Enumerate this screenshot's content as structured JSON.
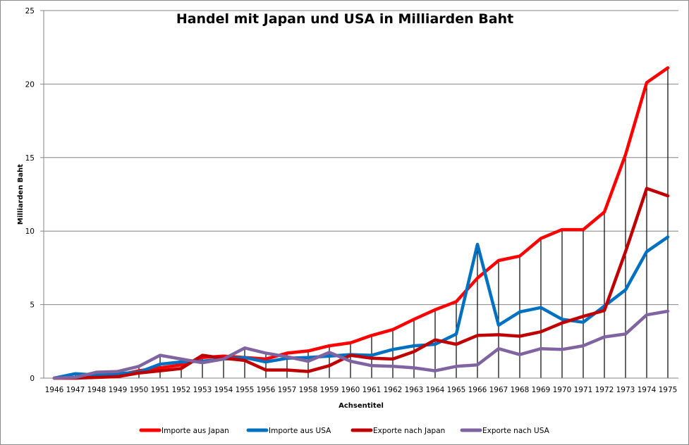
{
  "chart_data": {
    "type": "line",
    "title": "Handel mit Japan und USA in Milliarden Baht",
    "xlabel": "Achsentitel",
    "ylabel": "Milliarden Baht",
    "ylim": [
      0,
      25
    ],
    "yticks": [
      "0",
      "5",
      "10",
      "15",
      "20",
      "25"
    ],
    "ytick_values": [
      0,
      5,
      10,
      15,
      20,
      25
    ],
    "grid": "horizontal",
    "legend_position": "bottom",
    "high_low_lines": true,
    "categories": [
      "1946",
      "1947",
      "1948",
      "1949",
      "1950",
      "1951",
      "1952",
      "1953",
      "1954",
      "1955",
      "1956",
      "1957",
      "1958",
      "1959",
      "1960",
      "1961",
      "1962",
      "1963",
      "1964",
      "1965",
      "1966",
      "1967",
      "1968",
      "1969",
      "1970",
      "1971",
      "1972",
      "1973",
      "1974",
      "1975"
    ],
    "series": [
      {
        "name": "Importe aus Japan",
        "color": "#ff0000",
        "values": [
          0,
          0,
          0.1,
          0.2,
          0.5,
          0.7,
          0.9,
          1.4,
          1.5,
          1.4,
          1.3,
          1.7,
          1.85,
          2.2,
          2.4,
          2.9,
          3.3,
          4.0,
          4.65,
          5.2,
          6.8,
          8.0,
          8.3,
          9.5,
          10.1,
          10.1,
          11.3,
          15.2,
          20.1,
          21.1
        ]
      },
      {
        "name": "Importe aus USA",
        "color": "#0070c0",
        "values": [
          0,
          0.3,
          0.2,
          0.3,
          0.4,
          0.95,
          1.1,
          1.15,
          1.3,
          1.4,
          1.1,
          1.35,
          1.4,
          1.5,
          1.6,
          1.55,
          1.95,
          2.2,
          2.3,
          3.0,
          9.1,
          3.6,
          4.5,
          4.8,
          4.0,
          3.8,
          4.9,
          6.0,
          8.6,
          9.6
        ]
      },
      {
        "name": "Exporte nach Japan",
        "color": "#c00000",
        "values": [
          0,
          0,
          0.05,
          0.1,
          0.35,
          0.5,
          0.65,
          1.55,
          1.35,
          1.2,
          0.55,
          0.55,
          0.45,
          0.85,
          1.55,
          1.35,
          1.3,
          1.8,
          2.6,
          2.3,
          2.9,
          2.95,
          2.85,
          3.15,
          3.75,
          4.2,
          4.6,
          8.6,
          12.9,
          12.4
        ]
      },
      {
        "name": "Exporte nach USA",
        "color": "#8064a2",
        "values": [
          0,
          0.05,
          0.4,
          0.45,
          0.8,
          1.55,
          1.3,
          1.05,
          1.3,
          2.05,
          1.7,
          1.45,
          1.15,
          1.75,
          1.15,
          0.85,
          0.8,
          0.7,
          0.5,
          0.8,
          0.9,
          2.0,
          1.6,
          2.0,
          1.95,
          2.2,
          2.8,
          3.0,
          4.3,
          4.55
        ]
      }
    ]
  }
}
